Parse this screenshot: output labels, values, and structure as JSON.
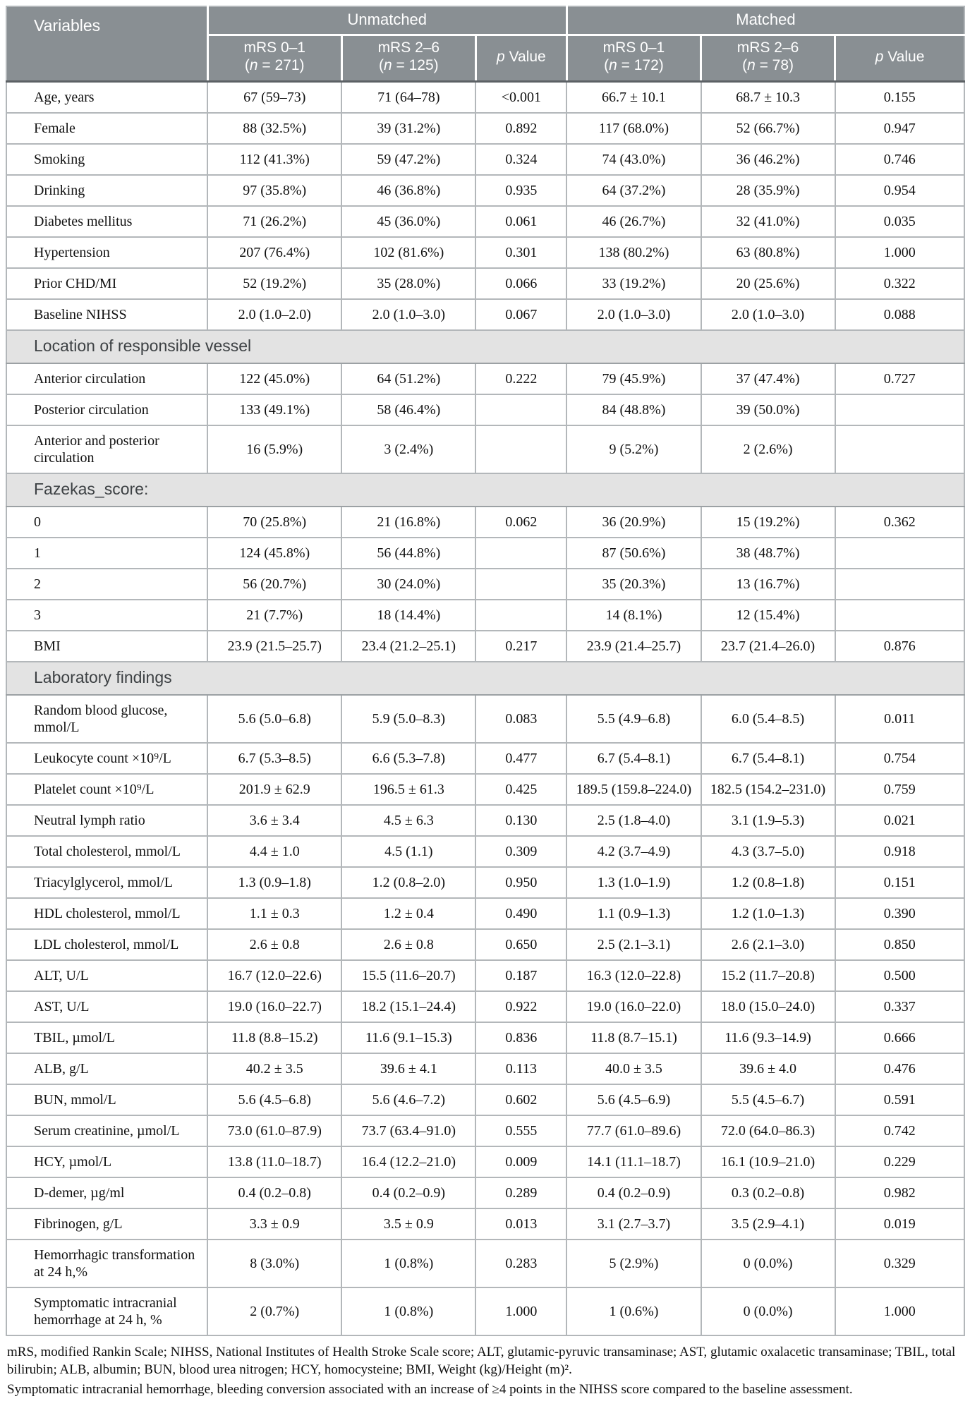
{
  "colors": {
    "header_bg": "#898f93",
    "section_bg": "#e3e3e3",
    "border": "#b3b7ba",
    "header_text": "#ffffff"
  },
  "table": {
    "header": {
      "variables": "Variables",
      "groups": [
        "Unmatched",
        "Matched"
      ],
      "p_italic": "p",
      "p_rest": " Value",
      "n_open": "(",
      "n_italic": "n",
      "n_eq": " = ",
      "n_close": ")",
      "cols": [
        {
          "line1": "mRS 0–1",
          "n": "271"
        },
        {
          "line1": "mRS 2–6",
          "n": "125"
        },
        {
          "p": true
        },
        {
          "line1": "mRS 0–1",
          "n": "172"
        },
        {
          "line1": "mRS 2–6",
          "n": "78"
        },
        {
          "p": true
        }
      ]
    },
    "rows": [
      {
        "label": "Age, years",
        "values": [
          "67 (59–73)",
          "71 (64–78)",
          "<0.001",
          "66.7 ± 10.1",
          "68.7 ± 10.3",
          "0.155"
        ]
      },
      {
        "label": "Female",
        "values": [
          "88 (32.5%)",
          "39 (31.2%)",
          "0.892",
          "117 (68.0%)",
          "52 (66.7%)",
          "0.947"
        ]
      },
      {
        "label": "Smoking",
        "values": [
          "112 (41.3%)",
          "59 (47.2%)",
          "0.324",
          "74 (43.0%)",
          "36 (46.2%)",
          "0.746"
        ]
      },
      {
        "label": "Drinking",
        "values": [
          "97 (35.8%)",
          "46 (36.8%)",
          "0.935",
          "64 (37.2%)",
          "28 (35.9%)",
          "0.954"
        ]
      },
      {
        "label": "Diabetes mellitus",
        "values": [
          "71 (26.2%)",
          "45 (36.0%)",
          "0.061",
          "46 (26.7%)",
          "32 (41.0%)",
          "0.035"
        ]
      },
      {
        "label": "Hypertension",
        "values": [
          "207 (76.4%)",
          "102 (81.6%)",
          "0.301",
          "138 (80.2%)",
          "63 (80.8%)",
          "1.000"
        ]
      },
      {
        "label": "Prior CHD/MI",
        "values": [
          "52 (19.2%)",
          "35 (28.0%)",
          "0.066",
          "33 (19.2%)",
          "20 (25.6%)",
          "0.322"
        ]
      },
      {
        "label": "Baseline NIHSS",
        "values": [
          "2.0 (1.0–2.0)",
          "2.0 (1.0–3.0)",
          "0.067",
          "2.0 (1.0–3.0)",
          "2.0 (1.0–3.0)",
          "0.088"
        ]
      },
      {
        "section": "Location of responsible vessel"
      },
      {
        "label": "Anterior circulation",
        "values": [
          "122 (45.0%)",
          "64 (51.2%)",
          "0.222",
          "79 (45.9%)",
          "37 (47.4%)",
          "0.727"
        ]
      },
      {
        "label": "Posterior circulation",
        "values": [
          "133 (49.1%)",
          "58 (46.4%)",
          "",
          "84 (48.8%)",
          "39 (50.0%)",
          ""
        ]
      },
      {
        "label": "Anterior and posterior circulation",
        "values": [
          "16 (5.9%)",
          "3 (2.4%)",
          "",
          "9 (5.2%)",
          "2 (2.6%)",
          ""
        ]
      },
      {
        "section": "Fazekas_score:"
      },
      {
        "label": "0",
        "values": [
          "70 (25.8%)",
          "21 (16.8%)",
          "0.062",
          "36 (20.9%)",
          "15 (19.2%)",
          "0.362"
        ]
      },
      {
        "label": "1",
        "values": [
          "124 (45.8%)",
          "56 (44.8%)",
          "",
          "87 (50.6%)",
          "38 (48.7%)",
          ""
        ]
      },
      {
        "label": "2",
        "values": [
          "56 (20.7%)",
          "30 (24.0%)",
          "",
          "35 (20.3%)",
          "13 (16.7%)",
          ""
        ]
      },
      {
        "label": "3",
        "values": [
          "21 (7.7%)",
          "18 (14.4%)",
          "",
          "14 (8.1%)",
          "12 (15.4%)",
          ""
        ]
      },
      {
        "label": "BMI",
        "values": [
          "23.9 (21.5–25.7)",
          "23.4 (21.2–25.1)",
          "0.217",
          "23.9 (21.4–25.7)",
          "23.7 (21.4–26.0)",
          "0.876"
        ]
      },
      {
        "section": "Laboratory findings"
      },
      {
        "label": "Random blood glucose, mmol/L",
        "values": [
          "5.6 (5.0–6.8)",
          "5.9 (5.0–8.3)",
          "0.083",
          "5.5 (4.9–6.8)",
          "6.0 (5.4–8.5)",
          "0.011"
        ]
      },
      {
        "label": "Leukocyte count ×10⁹/L",
        "values": [
          "6.7 (5.3–8.5)",
          "6.6 (5.3–7.8)",
          "0.477",
          "6.7 (5.4–8.1)",
          "6.7 (5.4–8.1)",
          "0.754"
        ]
      },
      {
        "label": "Platelet count ×10⁹/L",
        "values": [
          "201.9 ± 62.9",
          "196.5 ± 61.3",
          "0.425",
          "189.5 (159.8–224.0)",
          "182.5 (154.2–231.0)",
          "0.759"
        ]
      },
      {
        "label": "Neutral lymph ratio",
        "values": [
          "3.6 ± 3.4",
          "4.5 ± 6.3",
          "0.130",
          "2.5 (1.8–4.0)",
          "3.1 (1.9–5.3)",
          "0.021"
        ]
      },
      {
        "label": "Total cholesterol, mmol/L",
        "values": [
          "4.4 ± 1.0",
          "4.5 (1.1)",
          "0.309",
          "4.2 (3.7–4.9)",
          "4.3 (3.7–5.0)",
          "0.918"
        ]
      },
      {
        "label": "Triacylglycerol, mmol/L",
        "values": [
          "1.3 (0.9–1.8)",
          "1.2 (0.8–2.0)",
          "0.950",
          "1.3 (1.0–1.9)",
          "1.2 (0.8–1.8)",
          "0.151"
        ]
      },
      {
        "label": "HDL cholesterol, mmol/L",
        "values": [
          "1.1 ± 0.3",
          "1.2 ± 0.4",
          "0.490",
          "1.1 (0.9–1.3)",
          "1.2 (1.0–1.3)",
          "0.390"
        ]
      },
      {
        "label": "LDL cholesterol, mmol/L",
        "values": [
          "2.6 ± 0.8",
          "2.6 ± 0.8",
          "0.650",
          "2.5 (2.1–3.1)",
          "2.6 (2.1–3.0)",
          "0.850"
        ]
      },
      {
        "label": "ALT, U/L",
        "values": [
          "16.7 (12.0–22.6)",
          "15.5 (11.6–20.7)",
          "0.187",
          "16.3 (12.0–22.8)",
          "15.2 (11.7–20.8)",
          "0.500"
        ]
      },
      {
        "label": "AST, U/L",
        "values": [
          "19.0 (16.0–22.7)",
          "18.2 (15.1–24.4)",
          "0.922",
          "19.0 (16.0–22.0)",
          "18.0 (15.0–24.0)",
          "0.337"
        ]
      },
      {
        "label": "TBIL, µmol/L",
        "values": [
          "11.8 (8.8–15.2)",
          "11.6 (9.1–15.3)",
          "0.836",
          "11.8 (8.7–15.1)",
          "11.6 (9.3–14.9)",
          "0.666"
        ]
      },
      {
        "label": "ALB, g/L",
        "values": [
          "40.2 ± 3.5",
          "39.6 ± 4.1",
          "0.113",
          "40.0 ± 3.5",
          "39.6 ± 4.0",
          "0.476"
        ]
      },
      {
        "label": "BUN, mmol/L",
        "values": [
          "5.6 (4.5–6.8)",
          "5.6 (4.6–7.2)",
          "0.602",
          "5.6 (4.5–6.9)",
          "5.5 (4.5–6.7)",
          "0.591"
        ]
      },
      {
        "label": "Serum creatinine, µmol/L",
        "values": [
          "73.0 (61.0–87.9)",
          "73.7 (63.4–91.0)",
          "0.555",
          "77.7 (61.0–89.6)",
          "72.0 (64.0–86.3)",
          "0.742"
        ]
      },
      {
        "label": "HCY, µmol/L",
        "values": [
          "13.8 (11.0–18.7)",
          "16.4 (12.2–21.0)",
          "0.009",
          "14.1 (11.1–18.7)",
          "16.1 (10.9–21.0)",
          "0.229"
        ]
      },
      {
        "label": "D-demer, µg/ml",
        "values": [
          "0.4 (0.2–0.8)",
          "0.4 (0.2–0.9)",
          "0.289",
          "0.4 (0.2–0.9)",
          "0.3 (0.2–0.8)",
          "0.982"
        ]
      },
      {
        "label": "Fibrinogen, g/L",
        "values": [
          "3.3 ± 0.9",
          "3.5 ± 0.9",
          "0.013",
          "3.1 (2.7–3.7)",
          "3.5 (2.9–4.1)",
          "0.019"
        ]
      },
      {
        "label": "Hemorrhagic transformation at 24 h,%",
        "values": [
          "8 (3.0%)",
          "1 (0.8%)",
          "0.283",
          "5 (2.9%)",
          "0 (0.0%)",
          "0.329"
        ]
      },
      {
        "label": "Symptomatic intracranial hemorrhage at 24 h, %",
        "values": [
          "2 (0.7%)",
          "1 (0.8%)",
          "1.000",
          "1 (0.6%)",
          "0 (0.0%)",
          "1.000"
        ]
      }
    ]
  },
  "footnotes": {
    "abbreviations": "mRS, modified Rankin Scale; NIHSS, National Institutes of Health Stroke Scale score; ALT, glutamic-pyruvic transaminase; AST, glutamic oxalacetic transaminase; TBIL, total bilirubin; ALB, albumin; BUN, blood urea nitrogen; HCY, homocysteine; BMI, Weight (kg)/Height (m)².",
    "definition": "Symptomatic intracranial hemorrhage, bleeding conversion associated with an increase of ≥4 points in the NIHSS score compared to the baseline assessment."
  }
}
